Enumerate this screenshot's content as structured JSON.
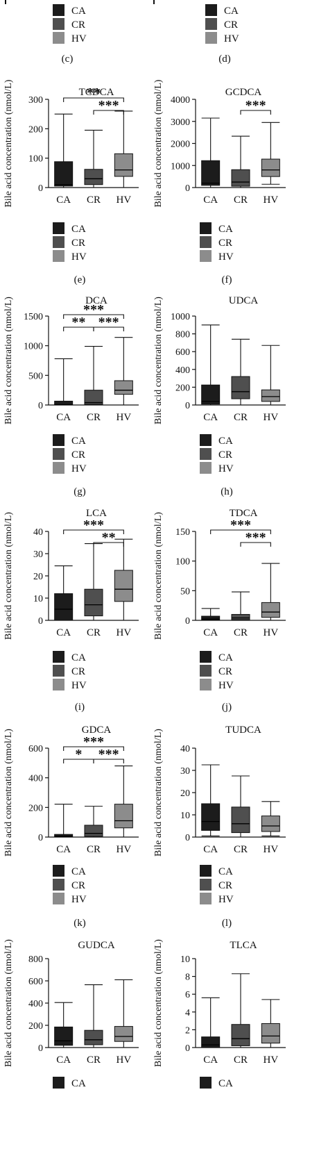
{
  "top_row": {
    "left": {
      "legend": [
        "CA",
        "CR",
        "HV"
      ],
      "panel_label": "(c)"
    },
    "right": {
      "legend": [
        "CA",
        "CR",
        "HV"
      ],
      "panel_label": "(d)"
    }
  },
  "colors": {
    "CA": "#1c1c1c",
    "CR": "#4f4f4f",
    "HV": "#8c8c8c"
  },
  "chart_data": [
    {
      "type": "box",
      "panel_label": "(e)",
      "title": "TCDCA",
      "ylabel": "Bile acid concentration (nmol/L)",
      "categories": [
        "CA",
        "CR",
        "HV"
      ],
      "ylim": [
        0,
        300
      ],
      "yticks": [
        0,
        100,
        200,
        300
      ],
      "boxes": [
        {
          "group": "CA",
          "min": 0,
          "q1": 5,
          "median": 10,
          "q3": 88,
          "max": 250
        },
        {
          "group": "CR",
          "min": 0,
          "q1": 10,
          "median": 30,
          "q3": 62,
          "max": 195
        },
        {
          "group": "HV",
          "min": 0,
          "q1": 38,
          "median": 60,
          "q3": 115,
          "max": 260
        }
      ],
      "significance": [
        {
          "from": "CA",
          "to": "HV",
          "label": "**"
        },
        {
          "from": "CR",
          "to": "HV",
          "label": "***"
        }
      ],
      "legend": [
        "CA",
        "CR",
        "HV"
      ]
    },
    {
      "type": "box",
      "panel_label": "(f)",
      "title": "GCDCA",
      "ylabel": "Bile acid concentration (nmol/L)",
      "categories": [
        "CA",
        "CR",
        "HV"
      ],
      "ylim": [
        0,
        4000
      ],
      "yticks": [
        0,
        1000,
        2000,
        3000,
        4000
      ],
      "boxes": [
        {
          "group": "CA",
          "min": 0,
          "q1": 100,
          "median": 200,
          "q3": 1220,
          "max": 3150
        },
        {
          "group": "CR",
          "min": 0,
          "q1": 60,
          "median": 250,
          "q3": 810,
          "max": 2330
        },
        {
          "group": "HV",
          "min": 150,
          "q1": 500,
          "median": 800,
          "q3": 1290,
          "max": 2950
        }
      ],
      "significance": [
        {
          "from": "CR",
          "to": "HV",
          "label": "***"
        }
      ],
      "legend": [
        "CA",
        "CR",
        "HV"
      ]
    },
    {
      "type": "box",
      "panel_label": "(g)",
      "title": "DCA",
      "ylabel": "Bile acid concentration (nmol/L)",
      "categories": [
        "CA",
        "CR",
        "HV"
      ],
      "ylim": [
        0,
        1500
      ],
      "yticks": [
        0,
        500,
        1000,
        1500
      ],
      "boxes": [
        {
          "group": "CA",
          "min": 0,
          "q1": 0,
          "median": 5,
          "q3": 65,
          "max": 780
        },
        {
          "group": "CR",
          "min": 0,
          "q1": 10,
          "median": 40,
          "q3": 250,
          "max": 990
        },
        {
          "group": "HV",
          "min": 0,
          "q1": 180,
          "median": 250,
          "q3": 410,
          "max": 1140
        }
      ],
      "significance": [
        {
          "from": "CA",
          "to": "HV",
          "label": "***"
        },
        {
          "from": "CA",
          "to": "CR",
          "label": "**"
        },
        {
          "from": "CR",
          "to": "HV",
          "label": "***"
        }
      ],
      "legend": [
        "CA",
        "CR",
        "HV"
      ]
    },
    {
      "type": "box",
      "panel_label": "(h)",
      "title": "UDCA",
      "ylabel": "Bile acid concentration (nmol/L)",
      "categories": [
        "CA",
        "CR",
        "HV"
      ],
      "ylim": [
        0,
        1000
      ],
      "yticks": [
        0,
        200,
        400,
        600,
        800,
        1000
      ],
      "boxes": [
        {
          "group": "CA",
          "min": 0,
          "q1": 10,
          "median": 40,
          "q3": 225,
          "max": 900
        },
        {
          "group": "CR",
          "min": 0,
          "q1": 70,
          "median": 150,
          "q3": 320,
          "max": 740
        },
        {
          "group": "HV",
          "min": 0,
          "q1": 40,
          "median": 95,
          "q3": 170,
          "max": 670
        }
      ],
      "significance": [],
      "legend": [
        "CA",
        "CR",
        "HV"
      ]
    },
    {
      "type": "box",
      "panel_label": "(i)",
      "title": "LCA",
      "ylabel": "Bile acid concentration (nmol/L)",
      "categories": [
        "CA",
        "CR",
        "HV"
      ],
      "ylim": [
        0,
        40
      ],
      "yticks": [
        0,
        10,
        20,
        30,
        40
      ],
      "boxes": [
        {
          "group": "CA",
          "min": 0,
          "q1": 0,
          "median": 5,
          "q3": 12,
          "max": 24.5
        },
        {
          "group": "CR",
          "min": 0,
          "q1": 2,
          "median": 7,
          "q3": 14,
          "max": 34.5
        },
        {
          "group": "HV",
          "min": 0,
          "q1": 8.5,
          "median": 14,
          "q3": 22.5,
          "max": 36.5
        }
      ],
      "significance": [
        {
          "from": "CA",
          "to": "HV",
          "label": "***"
        },
        {
          "from": "CR",
          "to": "HV",
          "label": "**"
        }
      ],
      "legend": [
        "CA",
        "CR",
        "HV"
      ]
    },
    {
      "type": "box",
      "panel_label": "(j)",
      "title": "TDCA",
      "ylabel": "Bile acid concentration (nmol/L)",
      "categories": [
        "CA",
        "CR",
        "HV"
      ],
      "ylim": [
        0,
        150
      ],
      "yticks": [
        0,
        50,
        100,
        150
      ],
      "boxes": [
        {
          "group": "CA",
          "min": 0,
          "q1": 0,
          "median": 2,
          "q3": 7,
          "max": 20
        },
        {
          "group": "CR",
          "min": 0,
          "q1": 1,
          "median": 4,
          "q3": 10,
          "max": 48
        },
        {
          "group": "HV",
          "min": 0,
          "q1": 5,
          "median": 14,
          "q3": 30,
          "max": 96
        }
      ],
      "significance": [
        {
          "from": "CA",
          "to": "HV",
          "label": "***"
        },
        {
          "from": "CR",
          "to": "HV",
          "label": "***"
        }
      ],
      "legend": [
        "CA",
        "CR",
        "HV"
      ]
    },
    {
      "type": "box",
      "panel_label": "(k)",
      "title": "GDCA",
      "ylabel": "Bile acid concentration (nmol/L)",
      "categories": [
        "CA",
        "CR",
        "HV"
      ],
      "ylim": [
        0,
        600
      ],
      "yticks": [
        0,
        200,
        400,
        600
      ],
      "boxes": [
        {
          "group": "CA",
          "min": 0,
          "q1": 0,
          "median": 5,
          "q3": 18,
          "max": 222
        },
        {
          "group": "CR",
          "min": 0,
          "q1": 5,
          "median": 25,
          "q3": 80,
          "max": 208
        },
        {
          "group": "HV",
          "min": 0,
          "q1": 62,
          "median": 110,
          "q3": 222,
          "max": 480
        }
      ],
      "significance": [
        {
          "from": "CA",
          "to": "HV",
          "label": "***"
        },
        {
          "from": "CA",
          "to": "CR",
          "label": "*"
        },
        {
          "from": "CR",
          "to": "HV",
          "label": "***"
        }
      ],
      "legend": [
        "CA",
        "CR",
        "HV"
      ]
    },
    {
      "type": "box",
      "panel_label": "(l)",
      "title": "TUDCA",
      "ylabel": "Bile acid concentration (nmol/L)",
      "categories": [
        "CA",
        "CR",
        "HV"
      ],
      "ylim": [
        0,
        40
      ],
      "yticks": [
        0,
        10,
        20,
        30,
        40
      ],
      "boxes": [
        {
          "group": "CA",
          "min": 0.5,
          "q1": 3,
          "median": 7,
          "q3": 15,
          "max": 32.5
        },
        {
          "group": "CR",
          "min": 0,
          "q1": 2,
          "median": 6,
          "q3": 13.5,
          "max": 27.5
        },
        {
          "group": "HV",
          "min": 0.5,
          "q1": 2.5,
          "median": 5,
          "q3": 9.5,
          "max": 16
        }
      ],
      "significance": [],
      "legend": [
        "CA",
        "CR",
        "HV"
      ]
    },
    {
      "type": "box",
      "panel_label": "",
      "title": "GUDCA",
      "ylabel": "Bile acid concentration (nmol/L)",
      "categories": [
        "CA",
        "CR",
        "HV"
      ],
      "ylim": [
        0,
        800
      ],
      "yticks": [
        0,
        200,
        400,
        600,
        800
      ],
      "boxes": [
        {
          "group": "CA",
          "min": 0,
          "q1": 20,
          "median": 60,
          "q3": 185,
          "max": 405
        },
        {
          "group": "CR",
          "min": 0,
          "q1": 25,
          "median": 70,
          "q3": 155,
          "max": 565
        },
        {
          "group": "HV",
          "min": 0,
          "q1": 55,
          "median": 100,
          "q3": 190,
          "max": 610
        }
      ],
      "significance": [],
      "legend": [
        "CA"
      ]
    },
    {
      "type": "box",
      "panel_label": "",
      "title": "TLCA",
      "ylabel": "Bile acid concentration (nmol/L)",
      "categories": [
        "CA",
        "CR",
        "HV"
      ],
      "ylim": [
        0,
        10
      ],
      "yticks": [
        0,
        2,
        4,
        6,
        8,
        10
      ],
      "boxes": [
        {
          "group": "CA",
          "min": 0,
          "q1": 0,
          "median": 0.3,
          "q3": 1.2,
          "max": 5.6
        },
        {
          "group": "CR",
          "min": 0,
          "q1": 0.2,
          "median": 1,
          "q3": 2.6,
          "max": 8.3
        },
        {
          "group": "HV",
          "min": 0,
          "q1": 0.5,
          "median": 1.3,
          "q3": 2.7,
          "max": 5.4
        }
      ],
      "significance": [],
      "legend": [
        "CA"
      ]
    }
  ]
}
